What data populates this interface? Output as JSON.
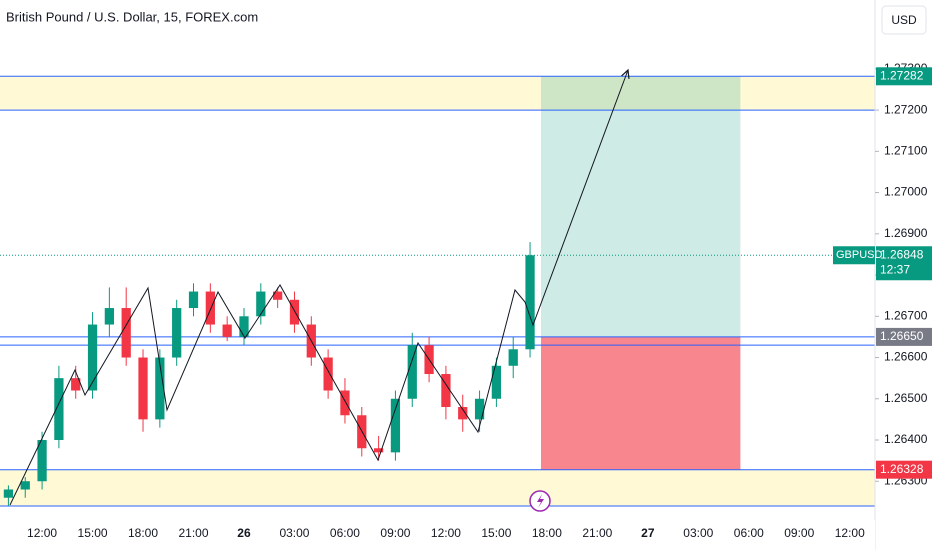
{
  "chart_data": {
    "type": "candlestick",
    "title": "British Pound / U.S. Dollar, 15, FOREX.com",
    "currency": "USD",
    "symbol": "GBPUSD",
    "countdown": "12:37",
    "x": [
      10,
      11,
      12,
      13,
      14,
      15,
      16,
      17,
      18,
      19,
      20,
      21,
      22,
      23,
      24,
      25,
      26,
      27,
      28,
      29,
      30,
      31,
      32,
      33,
      34,
      35,
      36,
      37,
      38,
      39,
      40,
      41
    ],
    "open": [
      1.2626,
      1.2628,
      1.263,
      1.264,
      1.2655,
      1.2652,
      1.2668,
      1.2672,
      1.266,
      1.2645,
      1.266,
      1.2672,
      1.2676,
      1.2668,
      1.2665,
      1.267,
      1.2676,
      1.2674,
      1.2668,
      1.266,
      1.2652,
      1.2646,
      1.2638,
      1.2637,
      1.265,
      1.2663,
      1.2656,
      1.2648,
      1.2645,
      1.265,
      1.2658,
      1.2662
    ],
    "high": [
      1.2629,
      1.2631,
      1.2642,
      1.2658,
      1.2658,
      1.2671,
      1.2677,
      1.2677,
      1.2662,
      1.2662,
      1.2674,
      1.2678,
      1.2678,
      1.267,
      1.2672,
      1.2678,
      1.2677,
      1.2676,
      1.267,
      1.2662,
      1.2655,
      1.2648,
      1.2641,
      1.2652,
      1.2666,
      1.2665,
      1.2658,
      1.2651,
      1.2652,
      1.266,
      1.2665,
      1.2688
    ],
    "low": [
      1.2624,
      1.2626,
      1.2628,
      1.2638,
      1.265,
      1.265,
      1.2665,
      1.2658,
      1.2642,
      1.2643,
      1.2658,
      1.267,
      1.2666,
      1.2664,
      1.2663,
      1.2668,
      1.2672,
      1.2666,
      1.2658,
      1.265,
      1.2644,
      1.2636,
      1.2635,
      1.2635,
      1.2648,
      1.2654,
      1.2645,
      1.2642,
      1.2642,
      1.2648,
      1.2655,
      1.266
    ],
    "close": [
      1.2628,
      1.263,
      1.264,
      1.2655,
      1.2652,
      1.2668,
      1.2672,
      1.266,
      1.2645,
      1.266,
      1.2672,
      1.2676,
      1.2668,
      1.2665,
      1.267,
      1.2676,
      1.2674,
      1.2668,
      1.266,
      1.2652,
      1.2646,
      1.2638,
      1.2637,
      1.265,
      1.2663,
      1.2656,
      1.2648,
      1.2645,
      1.265,
      1.2658,
      1.2662,
      1.26848
    ],
    "up_color": "#089981",
    "down_color": "#f23645",
    "xlim": [
      9.5,
      61.5
    ],
    "ylim": [
      1.26206,
      1.27467
    ],
    "xticks": [
      {
        "value": 12,
        "label": "12:00"
      },
      {
        "value": 15,
        "label": "15:00"
      },
      {
        "value": 18,
        "label": "18:00"
      },
      {
        "value": 21,
        "label": "21:00"
      },
      {
        "value": 24,
        "label": "26"
      },
      {
        "value": 27,
        "label": "03:00"
      },
      {
        "value": 30,
        "label": "06:00"
      },
      {
        "value": 33,
        "label": "09:00"
      },
      {
        "value": 36,
        "label": "12:00"
      },
      {
        "value": 39,
        "label": "15:00"
      },
      {
        "value": 42,
        "label": "18:00"
      },
      {
        "value": 45,
        "label": "21:00"
      },
      {
        "value": 48,
        "label": "27"
      },
      {
        "value": 51,
        "label": "03:00"
      },
      {
        "value": 54,
        "label": "06:00"
      },
      {
        "value": 57,
        "label": "09:00"
      },
      {
        "value": 60,
        "label": "12:00"
      }
    ],
    "yticks": [
      {
        "value": 1.263,
        "label": "1.26300"
      },
      {
        "value": 1.264,
        "label": "1.26400"
      },
      {
        "value": 1.265,
        "label": "1.26500"
      },
      {
        "value": 1.266,
        "label": "1.26600"
      },
      {
        "value": 1.267,
        "label": "1.26700"
      },
      {
        "value": 1.268,
        "label": "1.26800"
      },
      {
        "value": 1.269,
        "label": "1.26900"
      },
      {
        "value": 1.27,
        "label": "1.27000"
      },
      {
        "value": 1.271,
        "label": "1.27100"
      },
      {
        "value": 1.272,
        "label": "1.27200"
      },
      {
        "value": 1.273,
        "label": "1.27300"
      }
    ],
    "zones": [
      [
        1.272,
        1.27282
      ],
      [
        1.2624,
        1.26328
      ]
    ],
    "levels": [
      1.27282,
      1.272,
      1.2665,
      1.2663,
      1.26328,
      1.2624
    ],
    "position": {
      "x": [
        41.65,
        53.5
      ],
      "entry": {
        "value": 1.2665,
        "label": "1.26650"
      },
      "target": {
        "value": 1.27282,
        "label": "1.27282"
      },
      "stop": {
        "value": 1.26328,
        "label": "1.26328"
      }
    },
    "last": {
      "value": 1.26848,
      "label": "1.26848"
    }
  }
}
